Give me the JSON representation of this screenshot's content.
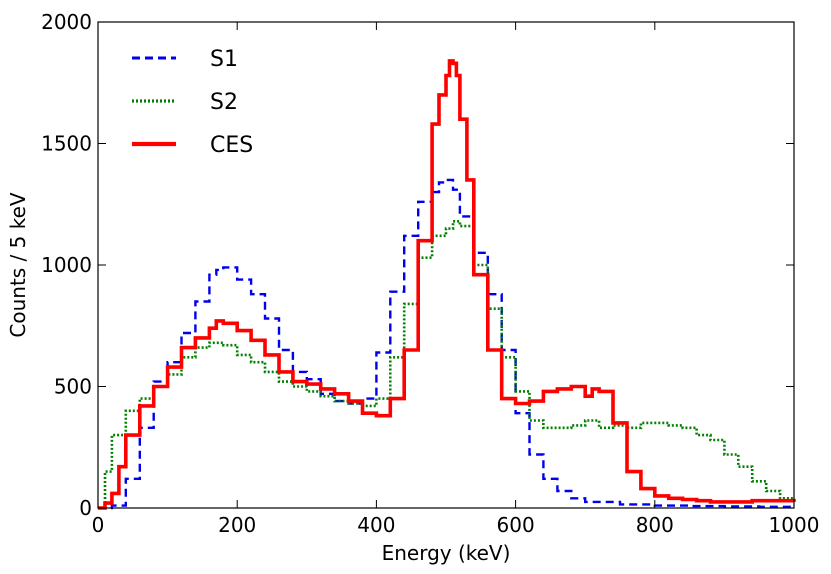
{
  "chart_data": {
    "type": "line",
    "title": "",
    "xlabel": "Energy (keV)",
    "ylabel": "Counts / 5 keV",
    "xlim": [
      0,
      1000
    ],
    "ylim": [
      0,
      2000
    ],
    "xticks": [
      0,
      200,
      400,
      600,
      800,
      1000
    ],
    "yticks": [
      0,
      500,
      1000,
      1500,
      2000
    ],
    "x_tick_labels": [
      "0",
      "200",
      "400",
      "600",
      "800",
      "1000"
    ],
    "y_tick_labels": [
      "0",
      "500",
      "1000",
      "1500",
      "2000"
    ],
    "grid": false,
    "legend_position": "top-left",
    "series": [
      {
        "name": "S1",
        "color": "#0000ee",
        "style": "dashed",
        "x": [
          0,
          20,
          40,
          60,
          80,
          100,
          120,
          140,
          160,
          170,
          180,
          200,
          220,
          240,
          260,
          280,
          300,
          320,
          340,
          360,
          380,
          400,
          420,
          440,
          460,
          480,
          490,
          500,
          510,
          520,
          540,
          560,
          580,
          600,
          620,
          640,
          660,
          680,
          700,
          750,
          800,
          850,
          900,
          950,
          1000
        ],
        "y": [
          0,
          10,
          120,
          330,
          520,
          600,
          720,
          850,
          960,
          980,
          990,
          940,
          880,
          780,
          650,
          560,
          530,
          470,
          440,
          430,
          450,
          640,
          890,
          1120,
          1260,
          1300,
          1340,
          1350,
          1310,
          1200,
          1050,
          880,
          650,
          390,
          220,
          120,
          70,
          40,
          25,
          15,
          10,
          8,
          6,
          5,
          5
        ]
      },
      {
        "name": "S2",
        "color": "#008000",
        "style": "dotted",
        "x": [
          0,
          10,
          20,
          40,
          60,
          80,
          100,
          120,
          140,
          160,
          180,
          200,
          220,
          240,
          260,
          280,
          300,
          320,
          340,
          360,
          380,
          400,
          420,
          440,
          460,
          480,
          500,
          510,
          520,
          540,
          560,
          580,
          600,
          620,
          640,
          660,
          680,
          700,
          720,
          740,
          760,
          780,
          800,
          820,
          840,
          860,
          880,
          900,
          920,
          940,
          960,
          980,
          1000
        ],
        "y": [
          0,
          150,
          300,
          400,
          450,
          500,
          550,
          620,
          660,
          680,
          670,
          630,
          600,
          560,
          520,
          500,
          480,
          460,
          440,
          430,
          420,
          450,
          620,
          840,
          1030,
          1120,
          1150,
          1180,
          1160,
          1000,
          820,
          620,
          480,
          360,
          330,
          330,
          340,
          360,
          330,
          340,
          330,
          350,
          350,
          340,
          330,
          300,
          280,
          220,
          170,
          110,
          70,
          40,
          30
        ]
      },
      {
        "name": "CES",
        "color": "#ff0000",
        "style": "solid",
        "x": [
          0,
          10,
          20,
          30,
          40,
          60,
          80,
          100,
          120,
          140,
          160,
          170,
          180,
          200,
          220,
          240,
          260,
          280,
          300,
          320,
          340,
          360,
          380,
          400,
          420,
          440,
          460,
          480,
          490,
          500,
          505,
          510,
          515,
          520,
          530,
          540,
          560,
          580,
          600,
          620,
          640,
          660,
          680,
          700,
          710,
          720,
          740,
          760,
          780,
          800,
          820,
          840,
          860,
          880,
          900,
          920,
          940,
          960,
          980,
          1000
        ],
        "y": [
          0,
          20,
          60,
          170,
          300,
          420,
          500,
          580,
          660,
          700,
          740,
          770,
          760,
          730,
          690,
          630,
          560,
          520,
          510,
          490,
          470,
          440,
          390,
          380,
          450,
          650,
          1100,
          1580,
          1700,
          1780,
          1840,
          1830,
          1780,
          1600,
          1350,
          960,
          650,
          450,
          430,
          440,
          480,
          490,
          500,
          460,
          490,
          480,
          350,
          150,
          80,
          50,
          40,
          35,
          30,
          25,
          25,
          25,
          30,
          30,
          30,
          25
        ]
      }
    ]
  }
}
